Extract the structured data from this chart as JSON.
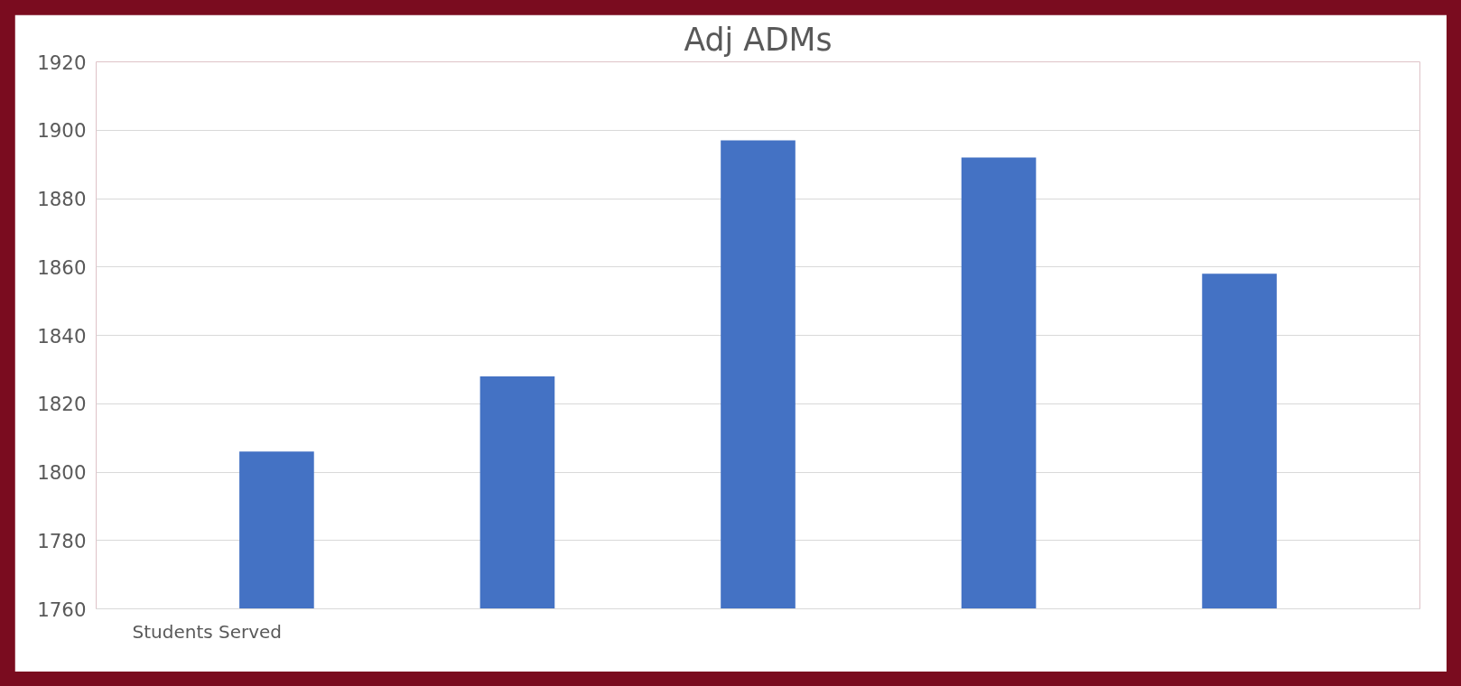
{
  "chart_data": {
    "type": "bar",
    "title": "Adj ADMs",
    "categories": [
      null,
      null,
      null,
      null,
      null
    ],
    "values": [
      1806,
      1828,
      1897,
      1892,
      1858
    ],
    "color": "#4472c4",
    "ylim": [
      1760,
      1920
    ],
    "yticks": [
      1760,
      1780,
      1800,
      1820,
      1840,
      1860,
      1880,
      1900,
      1920
    ],
    "grid": "y",
    "annotations": [
      "Students Served"
    ]
  }
}
